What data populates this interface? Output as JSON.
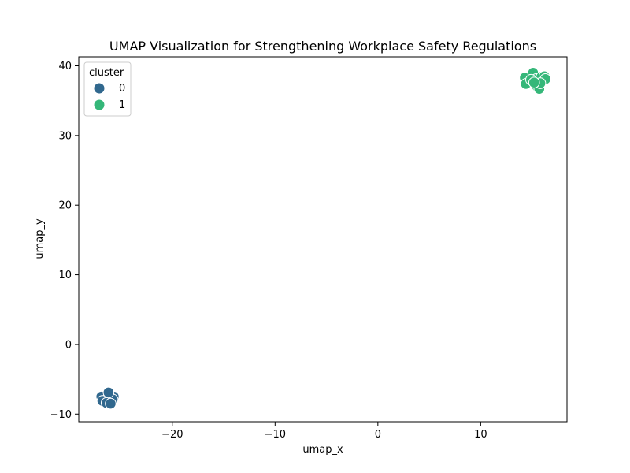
{
  "chart_data": {
    "type": "scatter",
    "title": "UMAP Visualization for Strengthening Workplace Safety Regulations",
    "xlabel": "umap_x",
    "ylabel": "umap_y",
    "xlim": [
      -29.1,
      18.4
    ],
    "ylim": [
      -11.1,
      41.3
    ],
    "xticks": [
      -20,
      -10,
      0,
      10
    ],
    "yticks": [
      -10,
      0,
      10,
      20,
      30,
      40
    ],
    "xtick_labels": [
      "−20",
      "−10",
      "0",
      "10"
    ],
    "ytick_labels": [
      "−10",
      "0",
      "10",
      "20",
      "30",
      "40"
    ],
    "grid": false,
    "legend": {
      "title": "cluster",
      "placement": "upper left",
      "entries": [
        {
          "label": "0",
          "color": "#31688e"
        },
        {
          "label": "1",
          "color": "#35b779"
        }
      ]
    },
    "series": [
      {
        "name": "0",
        "color": "#31688e",
        "points": [
          [
            -26.5,
            -7.4
          ],
          [
            -26.1,
            -7.1
          ],
          [
            -25.7,
            -7.5
          ],
          [
            -26.9,
            -7.5
          ],
          [
            -26.3,
            -7.8
          ],
          [
            -25.8,
            -7.9
          ],
          [
            -26.8,
            -8.1
          ],
          [
            -26.4,
            -8.4
          ],
          [
            -26.0,
            -8.5
          ],
          [
            -26.2,
            -6.9
          ]
        ]
      },
      {
        "name": "1",
        "color": "#35b779",
        "points": [
          [
            14.3,
            38.3
          ],
          [
            14.4,
            37.4
          ],
          [
            15.1,
            39.0
          ],
          [
            15.4,
            38.1
          ],
          [
            15.5,
            37.0
          ],
          [
            15.9,
            38.4
          ],
          [
            16.2,
            38.5
          ],
          [
            16.3,
            38.1
          ],
          [
            15.7,
            36.7
          ],
          [
            15.8,
            37.5
          ],
          [
            14.9,
            38.0
          ],
          [
            15.2,
            37.6
          ]
        ]
      }
    ]
  }
}
